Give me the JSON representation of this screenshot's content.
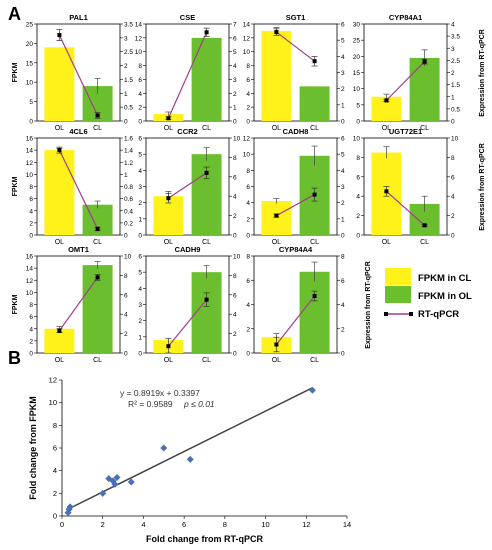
{
  "panel_labels": {
    "a": "A",
    "b": "B"
  },
  "legend": {
    "cl": "FPKM in CL",
    "ol": "FPKM in OL",
    "qpcr": "RT-qPCR",
    "cl_color": "#FFF21A",
    "ol_color": "#6BBF2E",
    "qpcr_color": "#A33C8E"
  },
  "axis_titles": {
    "fpkm": "FPKM",
    "qpcr": "Expression from RT-qPCR"
  },
  "chart_data": [
    {
      "type": "bar+line",
      "title": "PAL1",
      "categories": [
        "OL",
        "CL"
      ],
      "fpkm": [
        19,
        9
      ],
      "fpkm_err": [
        0,
        2
      ],
      "fpkm_ylim": [
        0,
        25
      ],
      "fpkm_ticks": [
        0,
        5,
        10,
        15,
        20,
        25
      ],
      "qpcr": [
        3.1,
        0.2
      ],
      "qpcr_err": [
        0.2,
        0.1
      ],
      "qpcr_ylim": [
        0,
        3.5
      ],
      "qpcr_ticks": [
        0,
        0.5,
        1,
        1.5,
        2,
        2.5,
        3,
        3.5
      ]
    },
    {
      "type": "bar+line",
      "title": "CSE",
      "categories": [
        "OL",
        "CL"
      ],
      "fpkm": [
        1,
        12
      ],
      "fpkm_err": [
        0.3,
        0
      ],
      "fpkm_ylim": [
        0,
        14
      ],
      "fpkm_ticks": [
        0,
        2,
        4,
        6,
        8,
        10,
        12,
        14
      ],
      "qpcr": [
        0.2,
        6.4
      ],
      "qpcr_err": [
        0.1,
        0.3
      ],
      "qpcr_ylim": [
        0,
        7
      ],
      "qpcr_ticks": [
        0,
        1,
        2,
        3,
        4,
        5,
        6,
        7
      ]
    },
    {
      "type": "bar+line",
      "title": "SGT1",
      "categories": [
        "OL",
        "CL"
      ],
      "fpkm": [
        13,
        5
      ],
      "fpkm_err": [
        0.5,
        0
      ],
      "fpkm_ylim": [
        0,
        14
      ],
      "fpkm_ticks": [
        0,
        2,
        4,
        6,
        8,
        10,
        12,
        14
      ],
      "qpcr": [
        5.5,
        3.7
      ],
      "qpcr_err": [
        0.2,
        0.3
      ],
      "qpcr_ylim": [
        0,
        6
      ],
      "qpcr_ticks": [
        0,
        1,
        2,
        3,
        4,
        5,
        6
      ]
    },
    {
      "type": "bar+line",
      "title": "CYP84A1",
      "categories": [
        "OL",
        "CL"
      ],
      "fpkm": [
        7.5,
        19.5
      ],
      "fpkm_err": [
        0.8,
        2.5
      ],
      "fpkm_ylim": [
        0,
        30
      ],
      "fpkm_ticks": [
        0,
        5,
        10,
        15,
        20,
        25,
        30
      ],
      "qpcr": [
        0.85,
        2.45
      ],
      "qpcr_err": [
        0.05,
        0.1
      ],
      "qpcr_ylim": [
        0,
        4
      ],
      "qpcr_ticks": [
        0,
        0.5,
        1,
        1.5,
        2,
        2.5,
        3,
        3.5,
        4
      ]
    },
    {
      "type": "bar+line",
      "title": "4CL6",
      "categories": [
        "OL",
        "CL"
      ],
      "fpkm": [
        14,
        5
      ],
      "fpkm_err": [
        0.3,
        0.6
      ],
      "fpkm_ylim": [
        0,
        16
      ],
      "fpkm_ticks": [
        0,
        2,
        4,
        6,
        8,
        10,
        12,
        14,
        16
      ],
      "qpcr": [
        1.4,
        0.1
      ],
      "qpcr_err": [
        0.05,
        0.03
      ],
      "qpcr_ylim": [
        0,
        1.6
      ],
      "qpcr_ticks": [
        0,
        0.2,
        0.4,
        0.6,
        0.8,
        1,
        1.2,
        1.4,
        1.6
      ]
    },
    {
      "type": "bar+line",
      "title": "CCR2",
      "categories": [
        "OL",
        "CL"
      ],
      "fpkm": [
        2.4,
        5
      ],
      "fpkm_err": [
        0.3,
        0.4
      ],
      "fpkm_ylim": [
        0,
        6
      ],
      "fpkm_ticks": [
        0,
        1,
        2,
        3,
        4,
        5,
        6
      ],
      "qpcr": [
        3.8,
        6.4
      ],
      "qpcr_err": [
        0.5,
        0.6
      ],
      "qpcr_ylim": [
        0,
        10
      ],
      "qpcr_ticks": [
        0,
        2,
        4,
        6,
        8,
        10
      ]
    },
    {
      "type": "bar+line",
      "title": "CADH8",
      "categories": [
        "OL",
        "CL"
      ],
      "fpkm": [
        4.2,
        9.8
      ],
      "fpkm_err": [
        0.3,
        1.2
      ],
      "fpkm_ylim": [
        0,
        12
      ],
      "fpkm_ticks": [
        0,
        2,
        4,
        6,
        8,
        10,
        12
      ],
      "qpcr": [
        1.2,
        2.5
      ],
      "qpcr_err": [
        0.1,
        0.4
      ],
      "qpcr_ylim": [
        0,
        6
      ],
      "qpcr_ticks": [
        0,
        1,
        2,
        3,
        4,
        5,
        6
      ]
    },
    {
      "type": "bar+line",
      "title": "UGT72E1",
      "categories": [
        "OL",
        "CL"
      ],
      "fpkm": [
        8.5,
        3.2
      ],
      "fpkm_err": [
        0.6,
        0.8
      ],
      "fpkm_ylim": [
        0,
        10
      ],
      "fpkm_ticks": [
        0,
        2,
        4,
        6,
        8,
        10
      ],
      "qpcr": [
        4.5,
        1.0
      ],
      "qpcr_err": [
        0.5,
        0.1
      ],
      "qpcr_ylim": [
        0,
        10
      ],
      "qpcr_ticks": [
        0,
        2,
        4,
        6,
        8,
        10
      ]
    },
    {
      "type": "bar+line",
      "title": "OMT1",
      "categories": [
        "OL",
        "CL"
      ],
      "fpkm": [
        4,
        14.5
      ],
      "fpkm_err": [
        0.4,
        0.6
      ],
      "fpkm_ylim": [
        0,
        16
      ],
      "fpkm_ticks": [
        0,
        2,
        4,
        6,
        8,
        10,
        12,
        14,
        16
      ],
      "qpcr": [
        2.3,
        7.8
      ],
      "qpcr_err": [
        0.2,
        0.3
      ],
      "qpcr_ylim": [
        0,
        10
      ],
      "qpcr_ticks": [
        0,
        2,
        4,
        6,
        8,
        10
      ]
    },
    {
      "type": "bar+line",
      "title": "CADH9",
      "categories": [
        "OL",
        "CL"
      ],
      "fpkm": [
        0.8,
        5
      ],
      "fpkm_err": [
        0,
        0.4
      ],
      "fpkm_ylim": [
        0,
        6
      ],
      "fpkm_ticks": [
        0,
        1,
        2,
        3,
        4,
        5,
        6
      ],
      "qpcr": [
        0.7,
        5.5
      ],
      "qpcr_err": [
        0.8,
        0.7
      ],
      "qpcr_ylim": [
        0,
        10
      ],
      "qpcr_ticks": [
        0,
        2,
        4,
        6,
        8,
        10
      ]
    },
    {
      "type": "bar+line",
      "title": "CYP84A4",
      "categories": [
        "OL",
        "CL"
      ],
      "fpkm": [
        1.3,
        6.7
      ],
      "fpkm_err": [
        0.3,
        0.8
      ],
      "fpkm_ylim": [
        0,
        8
      ],
      "fpkm_ticks": [
        0,
        2,
        4,
        6,
        8
      ],
      "qpcr": [
        0.7,
        4.7
      ],
      "qpcr_err": [
        0.6,
        0.4
      ],
      "qpcr_ylim": [
        0,
        8
      ],
      "qpcr_ticks": [
        0,
        2,
        4,
        6,
        8
      ]
    },
    {
      "type": "scatter",
      "x": [
        0.3,
        0.35,
        0.4,
        2.0,
        2.3,
        2.5,
        2.6,
        2.7,
        3.4,
        5.0,
        6.3,
        12.3
      ],
      "y": [
        0.3,
        0.6,
        0.8,
        2.0,
        3.3,
        3.1,
        2.8,
        3.4,
        3.0,
        6.0,
        5.0,
        11.1
      ],
      "xlim": [
        0,
        14
      ],
      "ylim": [
        0,
        12
      ],
      "xticks": [
        0,
        2,
        4,
        6,
        8,
        10,
        12,
        14
      ],
      "yticks": [
        0,
        2,
        4,
        6,
        8,
        10,
        12
      ],
      "xlabel": "Fold change from RT-qPCR",
      "ylabel": "Fold change from FPKM",
      "equation": "y = 0.8919x + 0.3397",
      "r_squared": "R² = 0.9589",
      "p_value": "p ≤ 0.01",
      "fit": {
        "slope": 0.8919,
        "intercept": 0.3397,
        "x_range": [
          0.3,
          12.3
        ]
      }
    }
  ]
}
